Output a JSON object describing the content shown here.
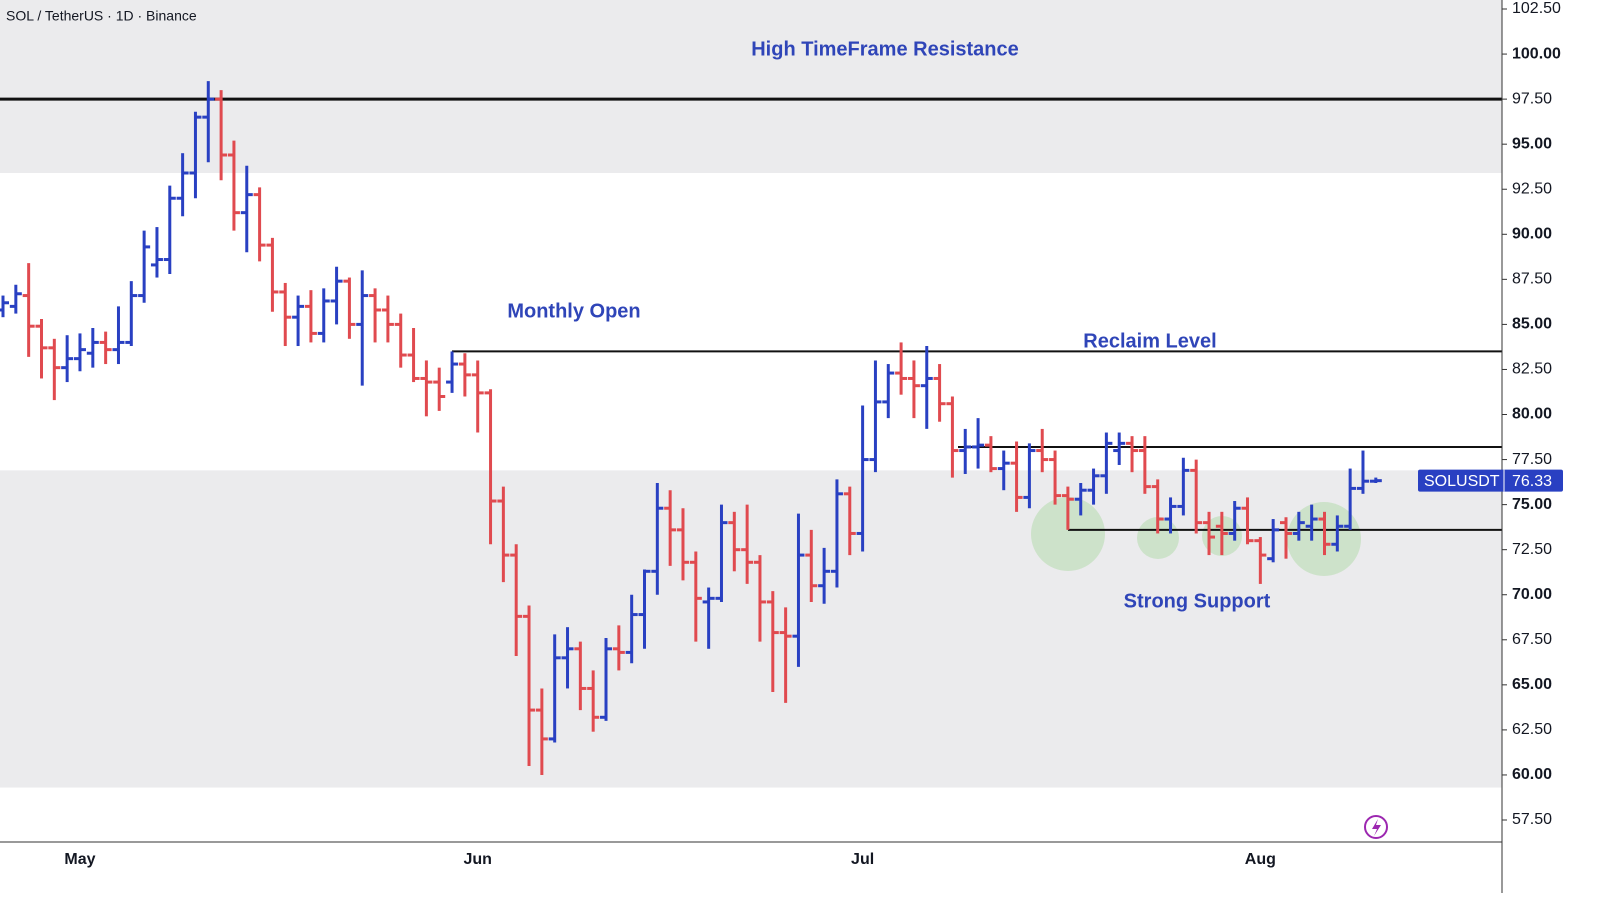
{
  "chart_data": {
    "type": "ohlc",
    "title": "SOL / TetherUS · 1D · Binance",
    "symbol": "SOLUSDT",
    "categories": [
      null,
      null,
      null,
      null,
      null,
      null,
      "May",
      null,
      null,
      null,
      null,
      null,
      null,
      null,
      null,
      null,
      null,
      null,
      null,
      null,
      null,
      null,
      null,
      null,
      null,
      null,
      null,
      null,
      null,
      null,
      null,
      null,
      null,
      null,
      null,
      null,
      null,
      "Jun",
      null,
      null,
      null,
      null,
      null,
      null,
      null,
      null,
      null,
      null,
      null,
      null,
      null,
      null,
      null,
      null,
      null,
      null,
      null,
      null,
      null,
      null,
      null,
      null,
      null,
      null,
      null,
      null,
      null,
      "Jul",
      null,
      null,
      null,
      null,
      null,
      null,
      null,
      null,
      null,
      null,
      null,
      null,
      null,
      null,
      null,
      null,
      null,
      null,
      null,
      null,
      null,
      null,
      null,
      null,
      null,
      null,
      null,
      null,
      null,
      null,
      "Aug",
      null,
      null,
      null,
      null,
      null,
      null,
      null,
      null,
      null
    ],
    "open": [
      85.8,
      86.0,
      86.6,
      84.9,
      83.7,
      82.6,
      83.1,
      83.4,
      84.0,
      83.6,
      84.0,
      86.6,
      88.3,
      88.6,
      92.0,
      93.4,
      96.5,
      97.5,
      94.4,
      91.2,
      92.2,
      89.4,
      86.8,
      85.4,
      86.0,
      84.5,
      86.3,
      87.4,
      85.0,
      86.6,
      85.8,
      85.0,
      83.3,
      82.0,
      81.8,
      81.8,
      82.8,
      82.2,
      81.2,
      75.2,
      72.2,
      68.8,
      63.6,
      62.0,
      66.5,
      67.0,
      64.8,
      63.2,
      67.0,
      66.8,
      68.9,
      71.3,
      74.8,
      73.6,
      71.8,
      69.6,
      69.8,
      74.0,
      72.5,
      71.8,
      69.6,
      67.9,
      67.7,
      72.2,
      70.5,
      71.3,
      75.6,
      73.4,
      77.5,
      80.7,
      82.3,
      82.0,
      81.6,
      82.0,
      80.6,
      78.0,
      78.2,
      78.3,
      77.0,
      77.3,
      75.4,
      78.0,
      77.5,
      75.5,
      75.3,
      75.8,
      76.6,
      78.0,
      78.4,
      78.0,
      76.0,
      74.2,
      74.9,
      76.9,
      74.0,
      73.8,
      73.4,
      74.8,
      73.0,
      72.0,
      74.0,
      73.4,
      73.8,
      74.2,
      72.8,
      73.8,
      75.9,
      76.3
    ],
    "high": [
      86.6,
      87.2,
      88.4,
      85.3,
      84.2,
      84.4,
      84.5,
      84.8,
      84.6,
      86.0,
      87.4,
      90.2,
      90.4,
      92.7,
      94.5,
      96.8,
      98.5,
      98.0,
      95.2,
      93.8,
      92.6,
      89.8,
      87.3,
      86.6,
      86.9,
      87.0,
      88.2,
      87.6,
      88.0,
      87.0,
      86.6,
      85.6,
      84.8,
      83.0,
      82.6,
      83.5,
      83.4,
      83.0,
      81.4,
      76.0,
      72.8,
      69.4,
      64.8,
      67.8,
      68.2,
      67.4,
      65.8,
      67.6,
      68.3,
      70.0,
      71.4,
      76.2,
      75.8,
      74.8,
      72.4,
      70.4,
      75.0,
      74.6,
      75.0,
      72.2,
      70.2,
      69.3,
      74.5,
      73.6,
      72.6,
      76.4,
      76.0,
      80.5,
      83.0,
      82.8,
      84.0,
      83.0,
      83.8,
      82.8,
      81.0,
      79.2,
      79.8,
      78.8,
      78.0,
      78.5,
      78.4,
      79.2,
      78.0,
      76.0,
      76.2,
      77.0,
      79.0,
      79.0,
      78.8,
      78.8,
      76.4,
      75.4,
      77.6,
      77.5,
      74.6,
      74.6,
      75.2,
      75.4,
      73.2,
      74.2,
      74.3,
      74.6,
      75.0,
      74.6,
      74.4,
      77.0,
      78.0,
      76.5
    ],
    "low": [
      85.4,
      85.6,
      83.2,
      82.0,
      80.8,
      81.8,
      82.4,
      82.6,
      82.8,
      82.8,
      83.8,
      86.2,
      87.6,
      87.8,
      91.0,
      92.0,
      94.0,
      93.0,
      90.2,
      89.0,
      88.5,
      85.7,
      83.8,
      83.8,
      84.0,
      84.0,
      85.0,
      84.2,
      81.6,
      84.0,
      84.0,
      82.6,
      81.8,
      79.9,
      80.2,
      81.2,
      81.0,
      79.0,
      72.8,
      70.7,
      66.6,
      60.5,
      60.0,
      61.8,
      64.8,
      63.6,
      62.4,
      63.0,
      65.8,
      66.2,
      67.0,
      70.0,
      71.6,
      70.8,
      67.4,
      67.0,
      69.6,
      71.3,
      70.6,
      67.4,
      64.6,
      64.0,
      66.0,
      69.6,
      69.5,
      70.4,
      72.2,
      72.4,
      76.8,
      79.8,
      81.1,
      79.8,
      79.2,
      79.6,
      76.5,
      76.7,
      77.0,
      76.8,
      75.8,
      74.6,
      74.8,
      76.8,
      75.0,
      73.6,
      74.4,
      75.0,
      75.6,
      77.2,
      76.8,
      75.6,
      73.4,
      73.4,
      74.4,
      73.4,
      72.2,
      72.2,
      73.0,
      72.8,
      70.6,
      71.8,
      72.0,
      73.0,
      73.0,
      72.2,
      72.4,
      73.6,
      75.6,
      76.2
    ],
    "close": [
      86.2,
      86.7,
      84.9,
      83.7,
      82.6,
      83.1,
      83.6,
      84.0,
      83.6,
      84.0,
      86.6,
      89.3,
      88.6,
      92.0,
      93.4,
      96.5,
      97.5,
      94.4,
      91.2,
      92.2,
      89.4,
      86.8,
      85.4,
      86.0,
      84.5,
      86.3,
      87.4,
      85.0,
      86.6,
      85.8,
      85.0,
      83.3,
      82.0,
      81.8,
      81.0,
      82.8,
      82.2,
      81.2,
      75.2,
      72.2,
      68.8,
      63.6,
      62.0,
      66.5,
      67.0,
      64.8,
      63.2,
      67.0,
      66.8,
      68.9,
      71.3,
      74.8,
      73.6,
      71.8,
      69.8,
      69.8,
      74.0,
      72.5,
      71.8,
      69.6,
      67.9,
      67.7,
      72.2,
      70.5,
      71.3,
      75.6,
      73.4,
      77.5,
      80.7,
      82.3,
      82.0,
      81.6,
      82.0,
      80.6,
      78.0,
      78.2,
      78.3,
      77.0,
      77.3,
      75.4,
      78.0,
      77.5,
      75.5,
      75.3,
      75.8,
      76.6,
      78.4,
      78.4,
      78.0,
      76.0,
      74.2,
      74.9,
      76.9,
      74.0,
      73.2,
      73.4,
      74.8,
      73.0,
      72.2,
      73.6,
      73.4,
      74.0,
      74.2,
      72.8,
      73.8,
      75.9,
      76.3,
      76.33
    ],
    "up_color": "#2940c2",
    "down_color": "#e04a4f",
    "ylim": [
      56.28,
      103.0
    ],
    "yticks": [
      {
        "value": 57.5,
        "label": "57.50"
      },
      {
        "value": 60,
        "label": "60.00"
      },
      {
        "value": 62.5,
        "label": "62.50"
      },
      {
        "value": 65,
        "label": "65.00"
      },
      {
        "value": 67.5,
        "label": "67.50"
      },
      {
        "value": 70,
        "label": "70.00"
      },
      {
        "value": 72.5,
        "label": "72.50"
      },
      {
        "value": 75,
        "label": "75.00"
      },
      {
        "value": 77.5,
        "label": "77.50"
      },
      {
        "value": 80,
        "label": "80.00"
      },
      {
        "value": 82.5,
        "label": "82.50"
      },
      {
        "value": 85,
        "label": "85.00"
      },
      {
        "value": 87.5,
        "label": "87.50"
      },
      {
        "value": 90,
        "label": "90.00"
      },
      {
        "value": 92.5,
        "label": "92.50"
      },
      {
        "value": 95,
        "label": "95.00"
      },
      {
        "value": 97.5,
        "label": "97.50"
      },
      {
        "value": 100,
        "label": "100.00"
      },
      {
        "value": 102.5,
        "label": "102.50"
      }
    ],
    "zones": [
      {
        "from": 93.4,
        "to": 103.0
      },
      {
        "from": 59.3,
        "to": 76.9
      }
    ],
    "levels": [
      97.5,
      83.5,
      78.2,
      73.6
    ],
    "annotations": [
      "High TimeFrame Resistance",
      "Monthly Open",
      "Reclaim Level",
      "Strong Support"
    ]
  }
}
